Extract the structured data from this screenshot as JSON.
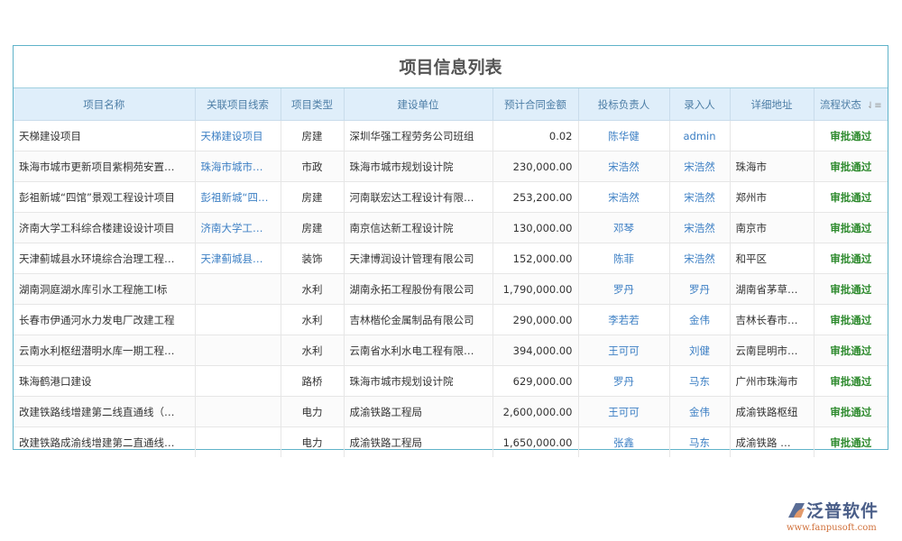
{
  "title": "项目信息列表",
  "columns": [
    "项目名称",
    "关联项目线索",
    "项目类型",
    "建设单位",
    "预计合同金额",
    "投标负责人",
    "录入人",
    "详细地址",
    "流程状态"
  ],
  "sort_icon": "sort-icon",
  "rows": [
    [
      "天梯建设项目",
      "天梯建设项目",
      "房建",
      "深圳华强工程劳务公司班组",
      "0.02",
      "陈华健",
      "admin",
      "",
      "审批通过"
    ],
    [
      "珠海市城市更新项目紫桐苑安置…",
      "珠海市城市…",
      "市政",
      "珠海市城市规划设计院",
      "230,000.00",
      "宋浩然",
      "宋浩然",
      "珠海市",
      "审批通过"
    ],
    [
      "彭祖新城“四馆”景观工程设计项目",
      "彭祖新城“四…",
      "房建",
      "河南联宏达工程设计有限…",
      "253,200.00",
      "宋浩然",
      "宋浩然",
      "郑州市",
      "审批通过"
    ],
    [
      "济南大学工科综合楼建设设计项目",
      "济南大学工…",
      "房建",
      "南京信达新工程设计院",
      "130,000.00",
      "邓琴",
      "宋浩然",
      "南京市",
      "审批通过"
    ],
    [
      "天津蓟城县水环境综合治理工程…",
      "天津蓟城县…",
      "装饰",
      "天津博润设计管理有限公司",
      "152,000.00",
      "陈菲",
      "宋浩然",
      "和平区",
      "审批通过"
    ],
    [
      "湖南洞庭湖水库引水工程施工I标",
      "",
      "水利",
      "湖南永拓工程股份有限公司",
      "1,790,000.00",
      "罗丹",
      "罗丹",
      "湖南省茅草…",
      "审批通过"
    ],
    [
      "长春市伊通河水力发电厂改建工程",
      "",
      "水利",
      "吉林楷伦金属制品有限公司",
      "290,000.00",
      "李若若",
      "金伟",
      "吉林长春市…",
      "审批通过"
    ],
    [
      "云南水利枢纽潜明水库一期工程…",
      "",
      "水利",
      "云南省水利水电工程有限…",
      "394,000.00",
      "王可可",
      "刘健",
      "云南昆明市…",
      "审批通过"
    ],
    [
      "珠海鹤港口建设",
      "",
      "路桥",
      "珠海市城市规划设计院",
      "629,000.00",
      "罗丹",
      "马东",
      "广州市珠海市",
      "审批通过"
    ],
    [
      "改建铁路线增建第二线直通线（…",
      "",
      "电力",
      "成渝铁路工程局",
      "2,600,000.00",
      "王可可",
      "金伟",
      "成渝铁路枢纽",
      "审批通过"
    ],
    [
      "改建铁路成渝线增建第二直通线…",
      "",
      "电力",
      "成渝铁路工程局",
      "1,650,000.00",
      "张鑫",
      "马东",
      "成渝铁路 …",
      "审批通过"
    ]
  ],
  "logo": {
    "name": "泛普软件",
    "url": "www.fanpusoft.com"
  },
  "colors": {
    "link": "#3c7fc4",
    "approved": "#2d8a2d",
    "header_bg": "#dfeefa",
    "border": "#5fb3c9"
  }
}
